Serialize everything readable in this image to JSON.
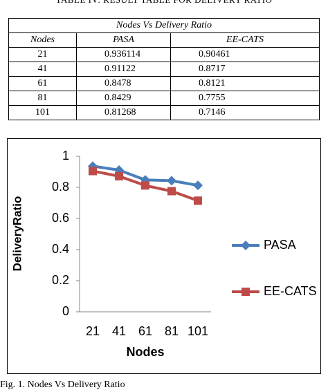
{
  "caption": "TABLE IV: RESULT TABLE FOR DELIVERY RATIO",
  "table": {
    "title": "Nodes Vs Delivery Ratio",
    "header": [
      "Nodes",
      "PASA",
      "EE-CATS"
    ],
    "rows": [
      [
        21,
        0.936114,
        0.90461
      ],
      [
        41,
        0.91122,
        0.8717
      ],
      [
        61,
        0.8478,
        0.8121
      ],
      [
        81,
        0.8429,
        0.7755
      ],
      [
        101,
        0.81268,
        0.7146
      ]
    ]
  },
  "chart_data": {
    "type": "line",
    "xlabel": "Nodes",
    "ylabel": "DeliveryRatio",
    "categories": [
      "21",
      "41",
      "61",
      "81",
      "101"
    ],
    "series": [
      {
        "name": "PASA",
        "color": "#4a7ebb",
        "marker": "diamond",
        "values": [
          0.936114,
          0.91122,
          0.8478,
          0.8429,
          0.81268
        ]
      },
      {
        "name": "EE-CATS",
        "color": "#be4b48",
        "marker": "square",
        "values": [
          0.90461,
          0.8717,
          0.8121,
          0.7755,
          0.7146
        ]
      }
    ],
    "ylim": [
      0,
      1
    ],
    "yticks": [
      0,
      0.2,
      0.4,
      0.6,
      0.8,
      1
    ],
    "grid": false,
    "legend": "right"
  },
  "figure_caption": "Fig. 1. Nodes Vs Delivery Ratio"
}
